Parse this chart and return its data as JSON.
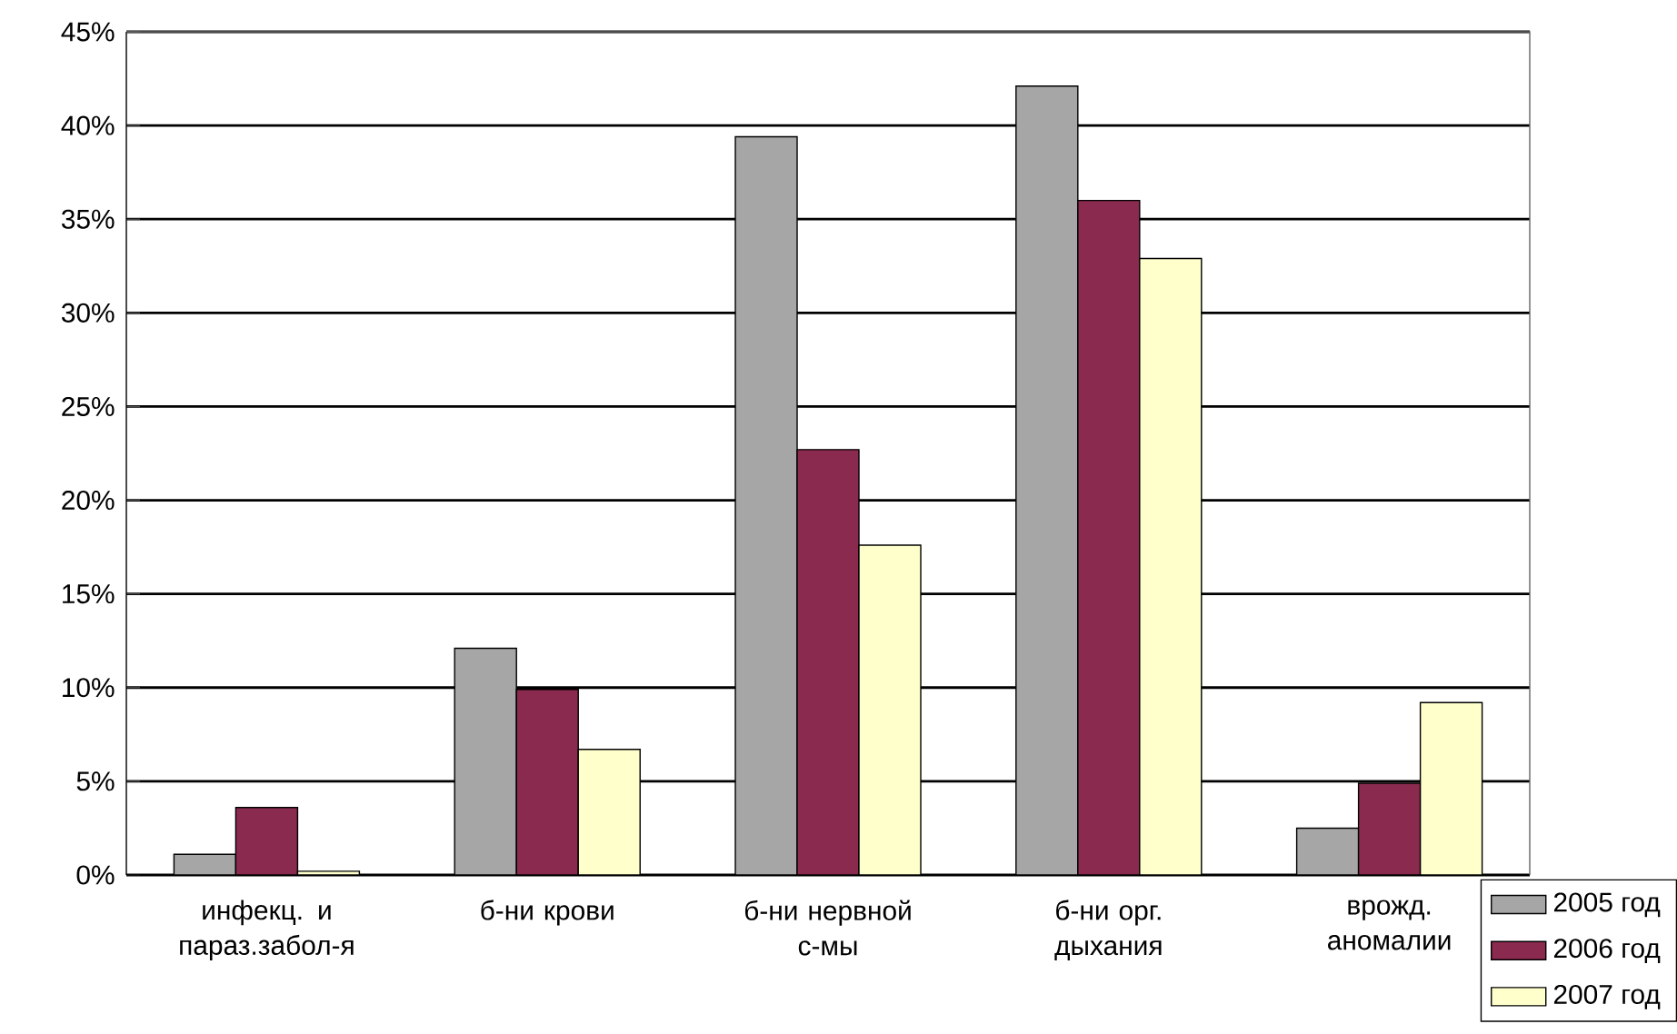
{
  "chart_data": {
    "type": "bar",
    "categories": [
      "инфекц. и параз.забол-я",
      "б-ни крови",
      "б-ни нервной с-мы",
      "б-ни орг. дыхания",
      "врожд. аномалии"
    ],
    "series": [
      {
        "name": "2005 год",
        "color": "#a6a6a6",
        "values": [
          1.1,
          12.1,
          39.4,
          42.1,
          2.5
        ]
      },
      {
        "name": "2006 год",
        "color": "#8b2a4f",
        "values": [
          3.6,
          9.9,
          22.7,
          36.0,
          4.9
        ]
      },
      {
        "name": "2007 год",
        "color": "#ffffcc",
        "values": [
          0.2,
          6.7,
          17.6,
          32.9,
          9.2
        ]
      }
    ],
    "ylim": [
      0,
      45
    ],
    "yticks": [
      {
        "value": 0,
        "label": "0%"
      },
      {
        "value": 5,
        "label": "5%"
      },
      {
        "value": 10,
        "label": "10%"
      },
      {
        "value": 15,
        "label": "15%"
      },
      {
        "value": 20,
        "label": "20%"
      },
      {
        "value": 25,
        "label": "25%"
      },
      {
        "value": 30,
        "label": "30%"
      },
      {
        "value": 35,
        "label": "35%"
      },
      {
        "value": 40,
        "label": "40%"
      },
      {
        "value": 45,
        "label": "45%"
      }
    ],
    "grid": "y",
    "legend": "bottom right"
  }
}
